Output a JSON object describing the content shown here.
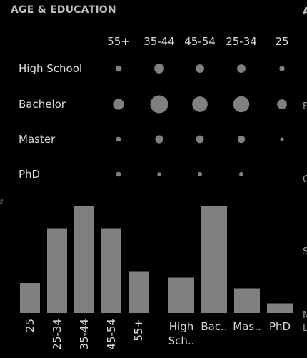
{
  "panel": {
    "title": "AGE & EDUCATION"
  },
  "right_edge_fragments": [
    "A",
    "E",
    "G",
    "S",
    "M",
    "L"
  ],
  "left_edge_fragments": [
    "e"
  ],
  "colors": {
    "background": "#000000",
    "mark": "#808080",
    "text": "#d8d8d8",
    "title": "#bdbdbd"
  },
  "chart_data": [
    {
      "type": "scatter",
      "title": "",
      "x_categories": [
        "55+",
        "35-44",
        "45-54",
        "25-34",
        "25"
      ],
      "y_categories": [
        "High School",
        "Bachelor",
        "Master",
        "PhD"
      ],
      "size_encoding": "dot area proportional to count",
      "values": [
        [
          1.0,
          2.4,
          1.8,
          1.8,
          0.7
        ],
        [
          3.0,
          8.0,
          6.0,
          6.5,
          2.4
        ],
        [
          0.6,
          1.6,
          1.5,
          1.4,
          0.3
        ],
        [
          0.6,
          0.4,
          0.5,
          0.5,
          0.0
        ]
      ]
    },
    {
      "type": "bar",
      "title": "",
      "categories": [
        "25",
        "25-34",
        "35-44",
        "45-54",
        "55+"
      ],
      "values": [
        28,
        79,
        100,
        79,
        39
      ],
      "ylim": [
        0,
        100
      ],
      "ylabel": "",
      "xlabel": "",
      "label_rotation": "vertical"
    },
    {
      "type": "bar",
      "title": "",
      "categories": [
        "High School",
        "Bachelor",
        "Master",
        "PhD"
      ],
      "category_labels": [
        [
          "High",
          "Sch.."
        ],
        [
          "Bac.."
        ],
        [
          "Mas.."
        ],
        [
          "PhD"
        ]
      ],
      "values": [
        33,
        100,
        23,
        9
      ],
      "ylim": [
        0,
        100
      ],
      "ylabel": "",
      "xlabel": ""
    }
  ]
}
